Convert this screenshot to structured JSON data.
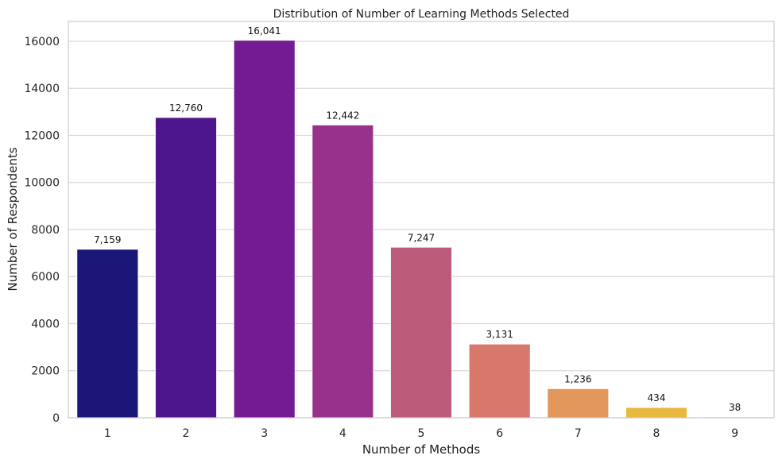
{
  "chart_data": {
    "type": "bar",
    "title": "Distribution of Number of Learning Methods Selected",
    "xlabel": "Number of Methods",
    "ylabel": "Number of Respondents",
    "categories": [
      "1",
      "2",
      "3",
      "4",
      "5",
      "6",
      "7",
      "8",
      "9"
    ],
    "values": [
      7159,
      12760,
      16041,
      12442,
      7247,
      3131,
      1236,
      434,
      38
    ],
    "value_labels": [
      "7,159",
      "12,760",
      "16,041",
      "12,442",
      "7,247",
      "3,131",
      "1,236",
      "434",
      "38"
    ],
    "colors": [
      "#1b1677",
      "#4d168c",
      "#741a93",
      "#97318b",
      "#bb5b79",
      "#d8786a",
      "#e3975a",
      "#e8b93d",
      "#f1e01f"
    ],
    "yticks": [
      0,
      2000,
      4000,
      6000,
      8000,
      10000,
      12000,
      14000,
      16000
    ],
    "ytick_labels": [
      "0",
      "2000",
      "4000",
      "6000",
      "8000",
      "10000",
      "12000",
      "14000",
      "16000"
    ],
    "ylim": [
      0,
      16843
    ],
    "grid": "horizontal",
    "legend": "none"
  }
}
